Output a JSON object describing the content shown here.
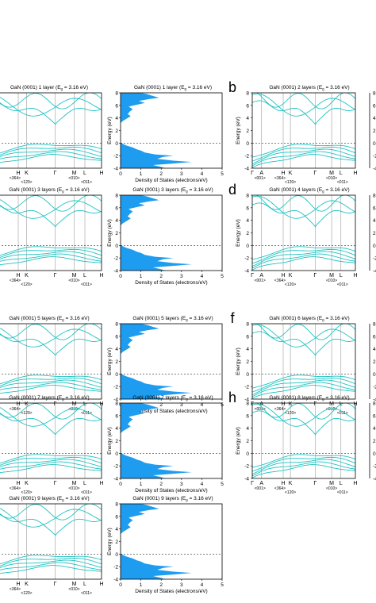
{
  "colors": {
    "band": "#1ec3c3",
    "dos": "#1e9cf0",
    "axis": "#000000",
    "fermi": "#333333"
  },
  "k_labels": [
    "Γ",
    "A",
    "H",
    "K",
    "Γ",
    "M",
    "L",
    "H"
  ],
  "k_sublabels": [
    "<001>",
    "<364>",
    "<120>",
    "<010>",
    "<011>"
  ],
  "panel_letters": [
    "b",
    "d",
    "f",
    "h"
  ],
  "band_title_prefix": "GaN (0001)",
  "gap_text": "(E",
  "gap_sub": "g",
  "gap_value": " = 3.16 eV)",
  "panels": [
    {
      "band_title": "GaN (0001) 1 layer",
      "dos_title": "GaN (0001) 1 layer"
    },
    {
      "band_title": "GaN (0001) 3 layers",
      "dos_title": "GaN (0001) 3 layers"
    },
    {
      "band_title": "GaN (0001) 5 layers",
      "dos_title": "GaN (0001) 5 layers"
    },
    {
      "band_title": "GaN (0001) 7 layers",
      "dos_title": "GaN (0001) 7 layers"
    },
    {
      "band_title": "GaN (0001) 9 layers",
      "dos_title": "GaN (0001) 9 layers"
    }
  ],
  "right_panels": [
    {
      "letter": "b",
      "band_title": "GaN (0001) 2 layers"
    },
    {
      "letter": "d",
      "band_title": "GaN (0001) 4 layers"
    },
    {
      "letter": "f",
      "band_title": "GaN (0001) 6 layers"
    },
    {
      "letter": "h",
      "band_title": "GaN (0001) 8 layers"
    }
  ],
  "chart_data": {
    "type": "area",
    "ylabel": "Energy (eV)",
    "xlabel": "Density of States (electrons/eV)",
    "ylim": [
      -4,
      8
    ],
    "xlim": [
      0,
      5
    ],
    "y_ticks": [
      -4,
      -2,
      0,
      2,
      4,
      6,
      8
    ],
    "x_ticks": [
      0,
      1,
      2,
      3,
      4,
      5
    ],
    "fermi_level": 0,
    "dos_profile": {
      "energy": [
        -4,
        -3.8,
        -3.5,
        -3.3,
        -3.0,
        -2.8,
        -2.5,
        -2.2,
        -2.0,
        -1.8,
        -1.5,
        -1.2,
        -1.0,
        -0.7,
        -0.4,
        -0.2,
        0,
        0.5,
        3.16,
        3.5,
        4.0,
        4.3,
        4.6,
        5.0,
        5.4,
        5.8,
        6.1,
        6.4,
        6.7,
        7.0,
        7.2,
        7.5,
        7.8,
        8.0
      ],
      "dos": [
        2.2,
        2.0,
        1.6,
        2.4,
        3.5,
        2.6,
        1.8,
        2.1,
        2.6,
        1.7,
        1.2,
        1.0,
        0.8,
        0.6,
        0.3,
        0.15,
        0.05,
        0,
        0,
        0.1,
        0.35,
        0.5,
        0.35,
        0.45,
        0.6,
        0.4,
        0.8,
        1.2,
        0.9,
        1.4,
        1.9,
        1.6,
        1.3,
        1.0
      ]
    }
  }
}
